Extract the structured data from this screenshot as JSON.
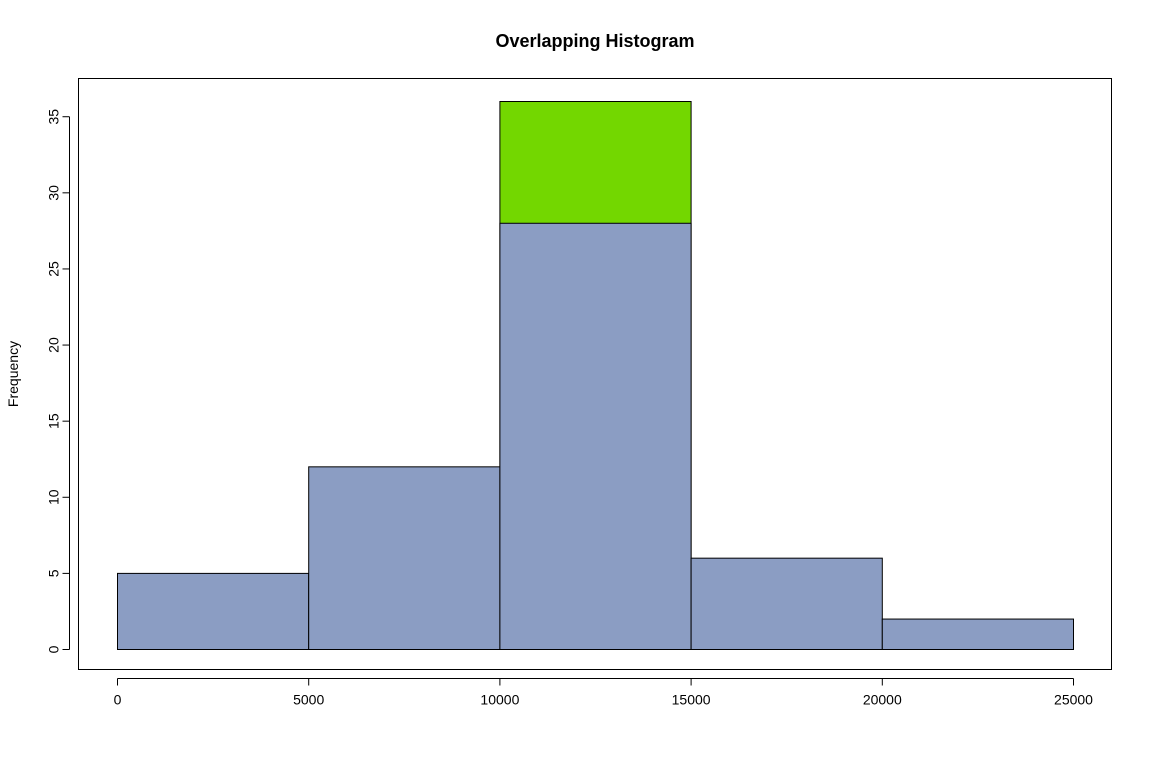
{
  "chart_data": {
    "type": "bar",
    "title": "Overlapping Histogram",
    "xlabel": "",
    "ylabel": "Frequency",
    "bins": [
      [
        0,
        5000
      ],
      [
        5000,
        10000
      ],
      [
        10000,
        15000
      ],
      [
        15000,
        20000
      ],
      [
        20000,
        25000
      ]
    ],
    "series": [
      {
        "color": "#73D700",
        "values": [
          0,
          0,
          36,
          0,
          0
        ]
      },
      {
        "color": "#8B9DC3",
        "values": [
          5,
          12,
          28,
          6,
          2
        ]
      }
    ],
    "xlim": [
      0,
      25000
    ],
    "ylim": [
      0,
      36
    ],
    "xticks": [
      0,
      5000,
      10000,
      15000,
      20000,
      25000
    ],
    "yticks": [
      0,
      5,
      10,
      15,
      20,
      25,
      30,
      35
    ],
    "grid": false,
    "legend": "none"
  }
}
